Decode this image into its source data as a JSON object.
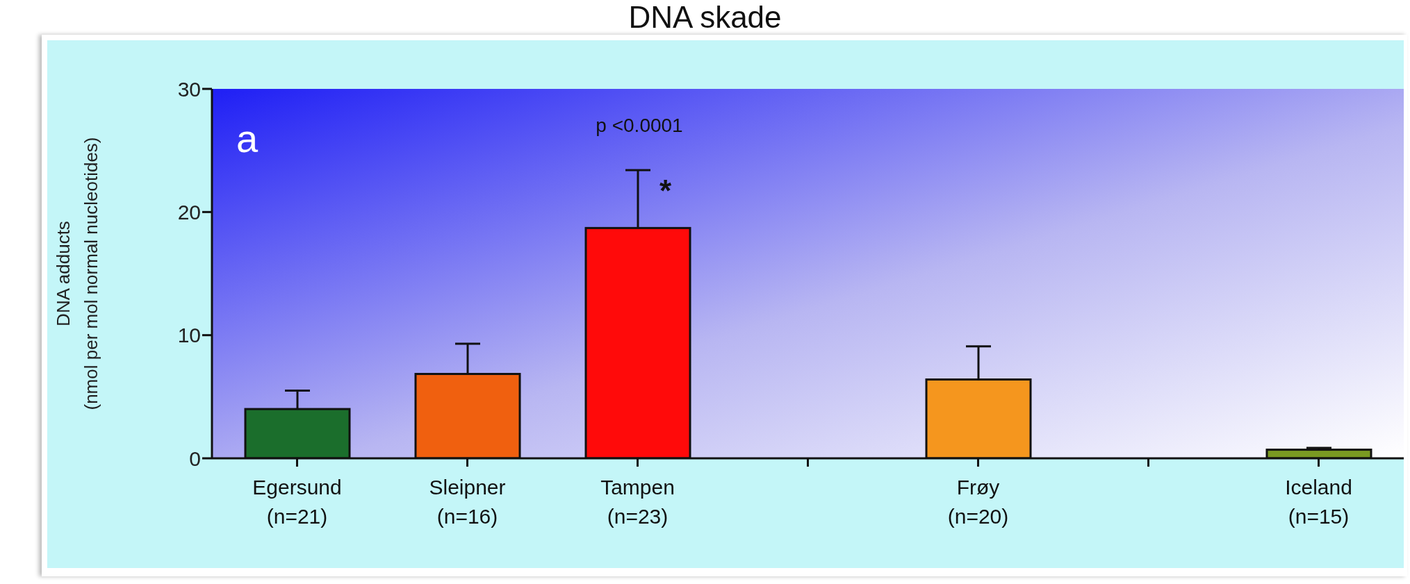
{
  "chart_data": {
    "type": "bar",
    "title": "DNA skade",
    "ylabel": "DNA adducts\n(nmol per mol normal nucleotides)",
    "categories": [
      "Egersund\n(n=21)",
      "Sleipner\n(n=16)",
      "Tampen\n(n=23)",
      null,
      "Frøy\n(n=20)",
      null,
      "Iceland\n(n=15)"
    ],
    "values": [
      4.0,
      6.85,
      18.7,
      null,
      6.4,
      null,
      0.7
    ],
    "errors": [
      [
        4.0,
        5.5
      ],
      [
        6.85,
        9.3
      ],
      [
        18.7,
        23.4
      ],
      null,
      [
        6.4,
        9.1
      ],
      null,
      [
        0.7,
        0.85
      ]
    ],
    "colors": [
      "#1b6e2c",
      "#f0600f",
      "#ff0a0a",
      null,
      "#f5961e",
      null,
      "#7a9a22"
    ],
    "ylim": [
      0,
      30
    ],
    "yticks": [
      0,
      10,
      20,
      30
    ],
    "annotations": [
      "a",
      "p <0.0001",
      {
        "text": "*",
        "x": "Tampen\n(n=23)",
        "y": 22
      }
    ]
  }
}
